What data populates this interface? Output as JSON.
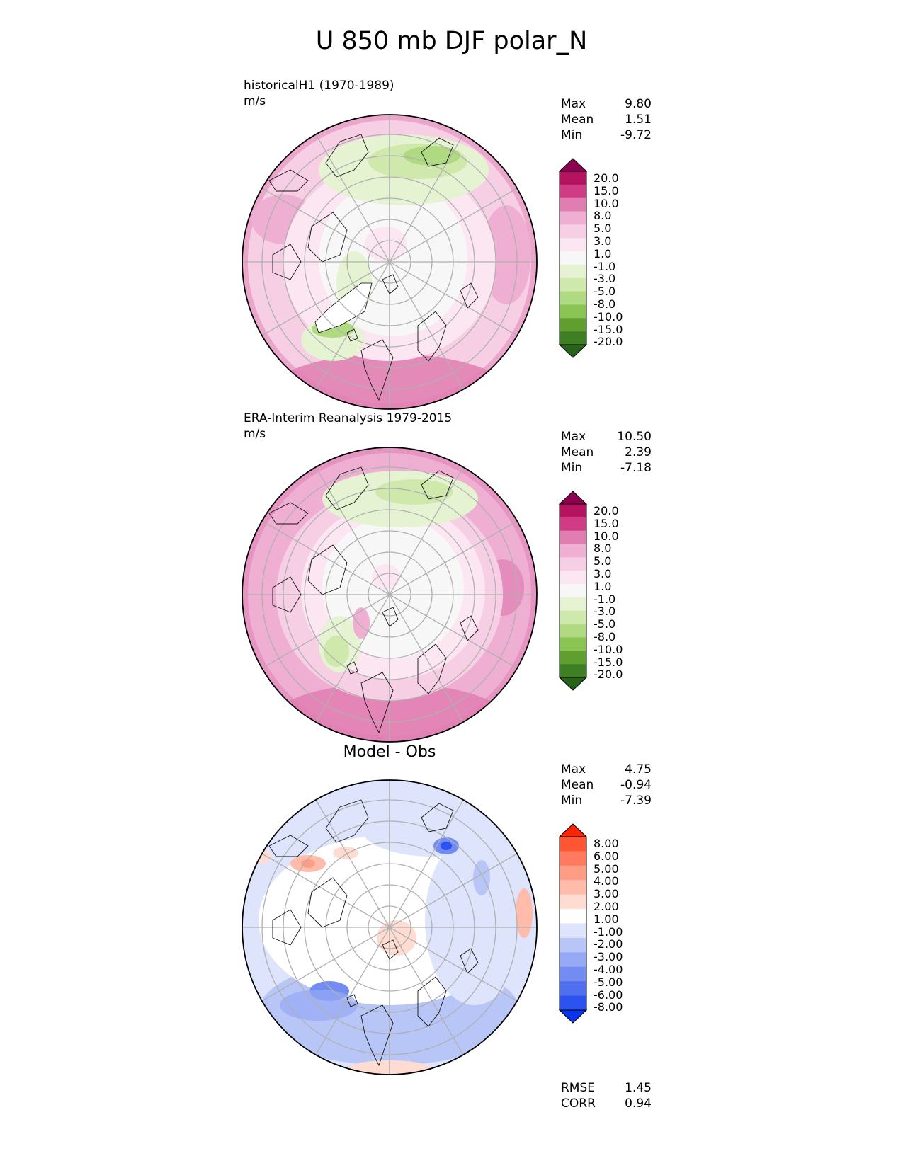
{
  "title": "U 850 mb DJF polar_N",
  "panels": [
    {
      "title_line1": "historicalH1 (1970-1989)",
      "title_line2": "m/s",
      "heading": "",
      "stats": [
        {
          "label": "Max",
          "value": "9.80"
        },
        {
          "label": "Mean",
          "value": "1.51"
        },
        {
          "label": "Min",
          "value": "-9.72"
        }
      ],
      "colorbar_labels": [
        "20.0",
        "15.0",
        "10.0",
        "8.0",
        "5.0",
        "3.0",
        "1.0",
        "-1.0",
        "-3.0",
        "-5.0",
        "-8.0",
        "-10.0",
        "-15.0",
        "-20.0"
      ]
    },
    {
      "title_line1": "ERA-Interim Reanalysis 1979-2015",
      "title_line2": "m/s",
      "heading": "",
      "stats": [
        {
          "label": "Max",
          "value": "10.50"
        },
        {
          "label": "Mean",
          "value": "2.39"
        },
        {
          "label": "Min",
          "value": "-7.18"
        }
      ],
      "colorbar_labels": [
        "20.0",
        "15.0",
        "10.0",
        "8.0",
        "5.0",
        "3.0",
        "1.0",
        "-1.0",
        "-3.0",
        "-5.0",
        "-8.0",
        "-10.0",
        "-15.0",
        "-20.0"
      ]
    },
    {
      "title_line1": "",
      "title_line2": "",
      "heading": "Model - Obs",
      "stats": [
        {
          "label": "Max",
          "value": "4.75"
        },
        {
          "label": "Mean",
          "value": "-0.94"
        },
        {
          "label": "Min",
          "value": "-7.39"
        }
      ],
      "colorbar_labels": [
        "8.00",
        "6.00",
        "5.00",
        "4.00",
        "3.00",
        "2.00",
        "1.00",
        "-1.00",
        "-2.00",
        "-3.00",
        "-4.00",
        "-5.00",
        "-6.00",
        "-8.00"
      ]
    }
  ],
  "bottom_stats": [
    {
      "label": "RMSE",
      "value": "1.45"
    },
    {
      "label": "CORR",
      "value": "0.94"
    }
  ],
  "colors": {
    "pink_green": [
      "#8e0152",
      "#b5135f",
      "#cf3b84",
      "#e07eb2",
      "#eeafd2",
      "#f7cfe4",
      "#fbe6f1",
      "#f7f7f7",
      "#e6f3d3",
      "#cfe9ad",
      "#b0da82",
      "#8ac452",
      "#5f9e2f",
      "#3f7f24",
      "#276419"
    ],
    "blue_red": [
      "#ff2400",
      "#ff5533",
      "#ff7a5e",
      "#ff9c86",
      "#ffbcab",
      "#ffdcd2",
      "#ffffff",
      "#dde4fb",
      "#b8c6f7",
      "#95a9f4",
      "#728cf1",
      "#4f6ff0",
      "#2c52f0",
      "#0a35f0"
    ]
  }
}
